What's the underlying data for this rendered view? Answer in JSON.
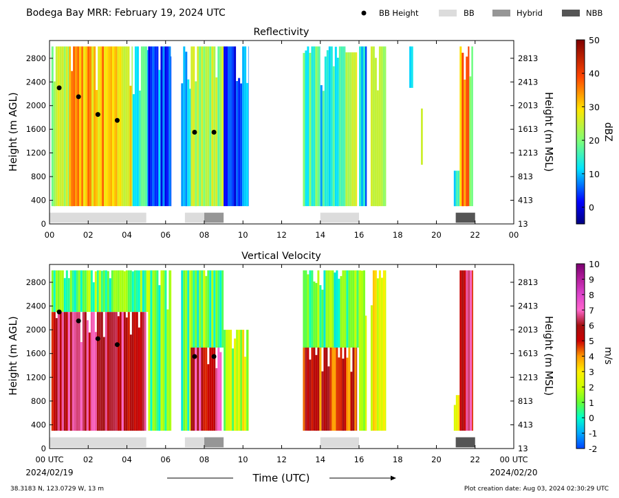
{
  "header": {
    "title": "Bodega Bay MRR:  February 19, 2024 UTC",
    "legend": [
      {
        "label": "BB Height",
        "symbol": "dot",
        "color": "#000000"
      },
      {
        "label": "BB",
        "symbol": "box",
        "color": "#dcdcdc"
      },
      {
        "label": "Hybrid",
        "symbol": "box",
        "color": "#969696"
      },
      {
        "label": "NBB",
        "symbol": "box",
        "color": "#555555"
      }
    ]
  },
  "footer": {
    "location": "38.3183 N, 123.0729 W, 13 m",
    "creation_date": "Plot creation date: Aug 03, 2024 02:30:29 UTC",
    "xlabel": "Time (UTC)",
    "start_date": "2024/02/19",
    "end_date": "2024/02/20"
  },
  "chart_data": [
    {
      "type": "heatmap",
      "title": "Reflectivity",
      "ylabel": "Height (m AGL)",
      "y2label": "Height (m MSL)",
      "colorbar_label": "dBZ",
      "colorbar_range": [
        -5,
        50
      ],
      "colorbar_ticks": [
        0,
        10,
        20,
        30,
        40,
        50
      ],
      "x_ticks": [
        "00",
        "02",
        "04",
        "06",
        "08",
        "10",
        "12",
        "14",
        "16",
        "18",
        "20",
        "22",
        "00"
      ],
      "xlim": [
        0,
        24
      ],
      "ylim": [
        0,
        3100
      ],
      "y_ticks": [
        0,
        400,
        800,
        1200,
        1600,
        2000,
        2400,
        2800
      ],
      "y2_ticks": [
        13,
        413,
        813,
        1213,
        1613,
        2013,
        2413,
        2813
      ],
      "y2_tick_positions_agl": [
        0,
        400,
        800,
        1200,
        1600,
        2000,
        2400,
        2800
      ],
      "bb_height": [
        {
          "time": 0.5,
          "height": 2300
        },
        {
          "time": 1.5,
          "height": 2150
        },
        {
          "time": 2.5,
          "height": 1850
        },
        {
          "time": 3.5,
          "height": 1750
        },
        {
          "time": 7.5,
          "height": 1550
        },
        {
          "time": 8.5,
          "height": 1550
        }
      ],
      "bb_classification": [
        {
          "start": 0,
          "end": 5,
          "type": "BB"
        },
        {
          "start": 7,
          "end": 8,
          "type": "BB"
        },
        {
          "start": 8,
          "end": 9,
          "type": "Hybrid"
        },
        {
          "start": 14,
          "end": 16,
          "type": "BB"
        },
        {
          "start": 21,
          "end": 22,
          "type": "NBB"
        }
      ],
      "echo_blocks": [
        {
          "start": 0.1,
          "end": 1.0,
          "top": 3000,
          "bottom": 300,
          "value": 25
        },
        {
          "start": 1.0,
          "end": 3.5,
          "top": 3000,
          "bottom": 300,
          "value": 33
        },
        {
          "start": 3.5,
          "end": 4.3,
          "top": 3000,
          "bottom": 300,
          "value": 28
        },
        {
          "start": 4.3,
          "end": 5.1,
          "top": 3000,
          "bottom": 300,
          "value": 14
        },
        {
          "start": 5.1,
          "end": 6.3,
          "top": 3000,
          "bottom": 300,
          "value": 5
        },
        {
          "start": 6.8,
          "end": 7.3,
          "top": 3000,
          "bottom": 300,
          "value": 6
        },
        {
          "start": 7.3,
          "end": 9.0,
          "top": 3000,
          "bottom": 300,
          "value": 22
        },
        {
          "start": 9.0,
          "end": 10.3,
          "top": 3000,
          "bottom": 300,
          "value": 4
        },
        {
          "start": 13.1,
          "end": 14.0,
          "top": 3000,
          "bottom": 300,
          "value": 16
        },
        {
          "start": 14.0,
          "end": 15.3,
          "top": 3000,
          "bottom": 300,
          "value": 12
        },
        {
          "start": 15.3,
          "end": 15.9,
          "top": 2900,
          "bottom": 300,
          "value": 24
        },
        {
          "start": 16.0,
          "end": 16.4,
          "top": 3000,
          "bottom": 300,
          "value": 8
        },
        {
          "start": 16.6,
          "end": 17.4,
          "top": 3000,
          "bottom": 300,
          "value": 22
        },
        {
          "start": 18.6,
          "end": 18.8,
          "top": 3000,
          "bottom": 2300,
          "value": 12
        },
        {
          "start": 19.2,
          "end": 19.3,
          "top": 1950,
          "bottom": 1000,
          "value": 30
        },
        {
          "start": 20.9,
          "end": 21.2,
          "top": 900,
          "bottom": 300,
          "value": 12
        },
        {
          "start": 21.2,
          "end": 21.7,
          "top": 3000,
          "bottom": 300,
          "value": 35
        },
        {
          "start": 21.7,
          "end": 21.9,
          "top": 3000,
          "bottom": 300,
          "value": 25
        }
      ]
    },
    {
      "type": "heatmap",
      "title": "Vertical Velocity",
      "ylabel": "Height (m AGL)",
      "y2label": "Height (m MSL)",
      "colorbar_label": "m/s",
      "colorbar_range": [
        -2,
        10
      ],
      "colorbar_ticks": [
        -2,
        -1,
        0,
        1,
        2,
        3,
        4,
        5,
        6,
        7,
        8,
        9,
        10
      ],
      "x_ticks": [
        "00 UTC",
        "02",
        "04",
        "06",
        "08",
        "10",
        "12",
        "14",
        "16",
        "18",
        "20",
        "22",
        "00 UTC"
      ],
      "xlim": [
        0,
        24
      ],
      "ylim": [
        0,
        3100
      ],
      "y_ticks": [
        0,
        400,
        800,
        1200,
        1600,
        2000,
        2400,
        2800
      ],
      "y2_ticks": [
        13,
        413,
        813,
        1213,
        1613,
        2013,
        2413,
        2813
      ],
      "y2_tick_positions_agl": [
        0,
        400,
        800,
        1200,
        1600,
        2000,
        2400,
        2800
      ],
      "bb_height": [
        {
          "time": 0.5,
          "height": 2300
        },
        {
          "time": 1.5,
          "height": 2150
        },
        {
          "time": 2.5,
          "height": 1850
        },
        {
          "time": 3.5,
          "height": 1750
        },
        {
          "time": 7.5,
          "height": 1550
        },
        {
          "time": 8.5,
          "height": 1550
        }
      ],
      "bb_classification": [
        {
          "start": 0,
          "end": 5,
          "type": "BB"
        },
        {
          "start": 7,
          "end": 8,
          "type": "BB"
        },
        {
          "start": 8,
          "end": 9,
          "type": "Hybrid"
        },
        {
          "start": 14,
          "end": 16,
          "type": "BB"
        },
        {
          "start": 21,
          "end": 22,
          "type": "NBB"
        }
      ],
      "echo_blocks": [
        {
          "start": 0.1,
          "end": 5.1,
          "top": 3000,
          "bottom": 2300,
          "value": 1
        },
        {
          "start": 0.1,
          "end": 5.0,
          "top": 2300,
          "bottom": 300,
          "value": 6
        },
        {
          "start": 5.1,
          "end": 6.3,
          "top": 3000,
          "bottom": 300,
          "value": 1
        },
        {
          "start": 6.8,
          "end": 7.3,
          "top": 3000,
          "bottom": 300,
          "value": 1
        },
        {
          "start": 7.3,
          "end": 9.0,
          "top": 3000,
          "bottom": 1700,
          "value": 1
        },
        {
          "start": 7.3,
          "end": 8.9,
          "top": 1700,
          "bottom": 300,
          "value": 6
        },
        {
          "start": 9.0,
          "end": 10.3,
          "top": 2000,
          "bottom": 300,
          "value": 2
        },
        {
          "start": 13.1,
          "end": 16.0,
          "top": 3000,
          "bottom": 1700,
          "value": 1
        },
        {
          "start": 13.1,
          "end": 15.9,
          "top": 1700,
          "bottom": 300,
          "value": 5
        },
        {
          "start": 16.0,
          "end": 16.4,
          "top": 3000,
          "bottom": 300,
          "value": 2
        },
        {
          "start": 16.6,
          "end": 17.4,
          "top": 3000,
          "bottom": 300,
          "value": 3
        },
        {
          "start": 20.9,
          "end": 21.2,
          "top": 900,
          "bottom": 300,
          "value": 2
        },
        {
          "start": 21.2,
          "end": 21.9,
          "top": 3000,
          "bottom": 300,
          "value": 6
        }
      ]
    }
  ]
}
